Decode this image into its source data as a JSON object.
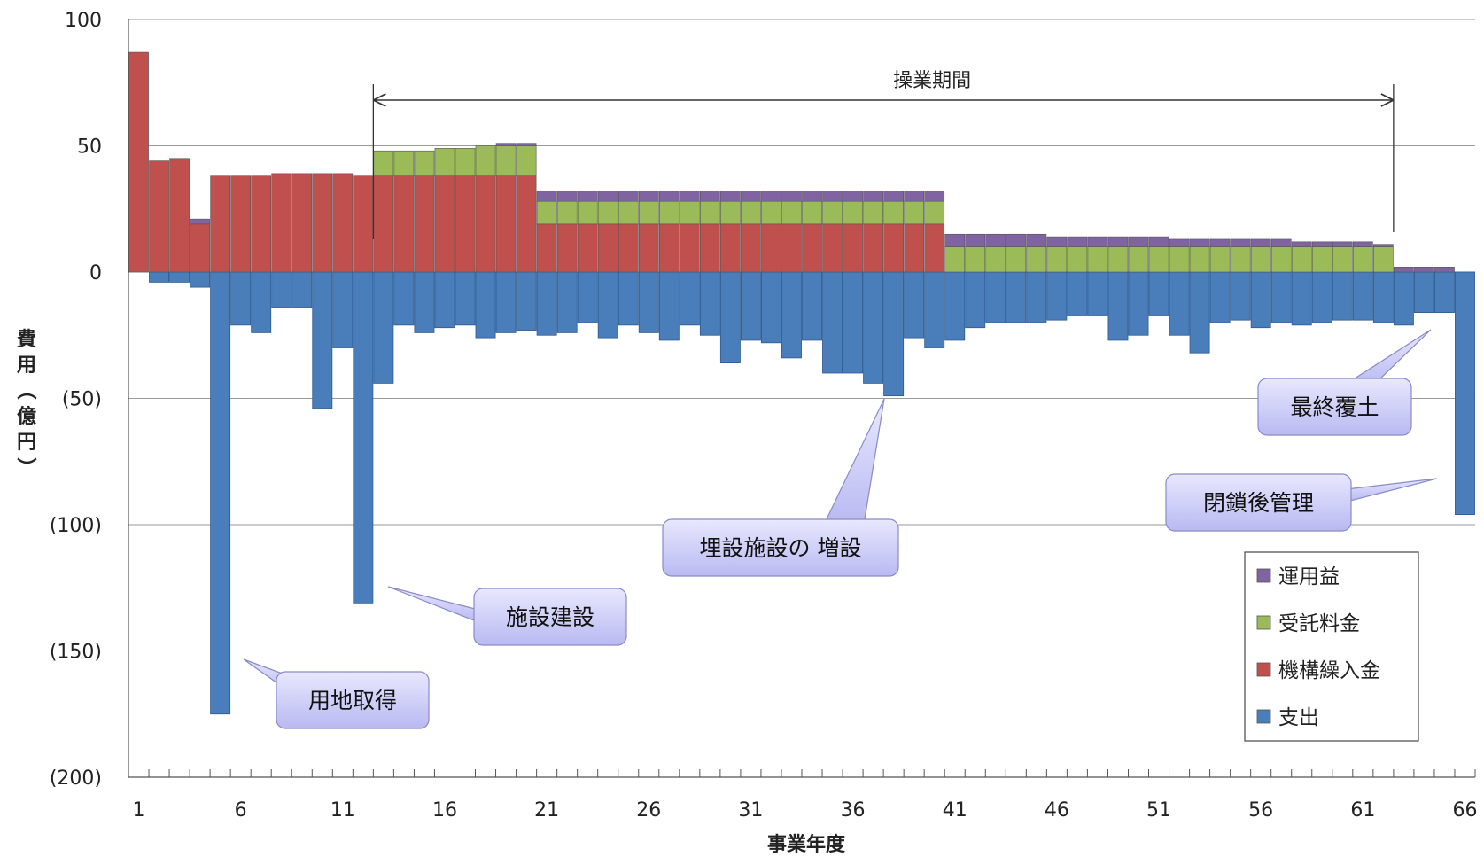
{
  "chart_data": {
    "type": "bar",
    "stacked": true,
    "xlabel": "事業年度",
    "ylabel": "費用（億円）",
    "ylim": [
      -200,
      100
    ],
    "yticks": [
      100,
      50,
      0,
      -50,
      -100,
      -150,
      -200
    ],
    "ytick_labels": [
      "100",
      "50",
      "0",
      "(50)",
      "(100)",
      "(150)",
      "(200)"
    ],
    "xtick_labels": [
      "1",
      "6",
      "11",
      "16",
      "21",
      "26",
      "31",
      "36",
      "41",
      "46",
      "51",
      "56",
      "61",
      "66"
    ],
    "xtick_values": [
      1,
      6,
      11,
      16,
      21,
      26,
      31,
      36,
      41,
      46,
      51,
      56,
      61,
      66
    ],
    "grid": true,
    "legend_position": "bottom-right",
    "x": [
      1,
      2,
      3,
      4,
      5,
      6,
      7,
      8,
      9,
      10,
      11,
      12,
      13,
      14,
      15,
      16,
      17,
      18,
      19,
      20,
      21,
      22,
      23,
      24,
      25,
      26,
      27,
      28,
      29,
      30,
      31,
      32,
      33,
      34,
      35,
      36,
      37,
      38,
      39,
      40,
      41,
      42,
      43,
      44,
      45,
      46,
      47,
      48,
      49,
      50,
      51,
      52,
      53,
      54,
      55,
      56,
      57,
      58,
      59,
      60,
      61,
      62,
      63,
      64,
      65,
      66
    ],
    "series": [
      {
        "name": "支出",
        "color": "#4a7ebb",
        "values": [
          0,
          -4,
          -4,
          -6,
          -175,
          -21,
          -24,
          -14,
          -14,
          -54,
          -30,
          -131,
          -44,
          -21,
          -24,
          -22,
          -21,
          -26,
          -24,
          -23,
          -25,
          -24,
          -20,
          -26,
          -21,
          -24,
          -27,
          -21,
          -25,
          -36,
          -27,
          -28,
          -34,
          -27,
          -40,
          -40,
          -44,
          -49,
          -26,
          -30,
          -27,
          -22,
          -20,
          -20,
          -20,
          -19,
          -17,
          -17,
          -27,
          -25,
          -17,
          -25,
          -32,
          -20,
          -19,
          -22,
          -20,
          -21,
          -20,
          -19,
          -19,
          -20,
          -21,
          -16,
          -16,
          -96
        ]
      },
      {
        "name": "機構繰入金",
        "color": "#c0504d",
        "values": [
          87,
          44,
          45,
          19,
          38,
          38,
          38,
          39,
          39,
          39,
          39,
          38,
          38,
          38,
          38,
          38,
          38,
          38,
          38,
          38,
          19,
          19,
          19,
          19,
          19,
          19,
          19,
          19,
          19,
          19,
          19,
          19,
          19,
          19,
          19,
          19,
          19,
          19,
          19,
          19,
          0,
          0,
          0,
          0,
          0,
          0,
          0,
          0,
          0,
          0,
          0,
          0,
          0,
          0,
          0,
          0,
          0,
          0,
          0,
          0,
          0,
          0,
          0,
          0,
          0,
          0
        ]
      },
      {
        "name": "受託料金",
        "color": "#9bbb59",
        "values": [
          0,
          0,
          0,
          0,
          0,
          0,
          0,
          0,
          0,
          0,
          0,
          0,
          10,
          10,
          10,
          11,
          11,
          12,
          12,
          12,
          9,
          9,
          9,
          9,
          9,
          9,
          9,
          9,
          9,
          9,
          9,
          9,
          9,
          9,
          9,
          9,
          9,
          9,
          9,
          9,
          10,
          10,
          10,
          10,
          10,
          10,
          10,
          10,
          10,
          10,
          10,
          10,
          10,
          10,
          10,
          10,
          10,
          10,
          10,
          10,
          10,
          10,
          0,
          0,
          0,
          0
        ]
      },
      {
        "name": "運用益",
        "color": "#8064a2",
        "values": [
          0,
          0,
          0,
          2,
          0,
          0,
          0,
          0,
          0,
          0,
          0,
          0,
          0,
          0,
          0,
          0,
          0,
          0,
          1,
          1,
          4,
          4,
          4,
          4,
          4,
          4,
          4,
          4,
          4,
          4,
          4,
          4,
          4,
          4,
          4,
          4,
          4,
          4,
          4,
          4,
          5,
          5,
          5,
          5,
          5,
          4,
          4,
          4,
          4,
          4,
          4,
          3,
          3,
          3,
          3,
          3,
          3,
          2,
          2,
          2,
          2,
          1,
          2,
          2,
          2,
          0
        ]
      }
    ],
    "legend_order": [
      "運用益",
      "受託料金",
      "機構繰入金",
      "支出"
    ],
    "annotations": {
      "operation_period": {
        "label": "操業期間",
        "x_start": 12.5,
        "x_end": 62.5,
        "y": 68
      },
      "callouts": [
        {
          "label": "用地取得",
          "target": [
            5,
            -175
          ]
        },
        {
          "label": "施設建設",
          "target": [
            12,
            -127
          ]
        },
        {
          "label": "埋設施設の 増設",
          "target": [
            38,
            -49
          ]
        },
        {
          "label": "最終覆土",
          "target": [
            64,
            -21
          ]
        },
        {
          "label": "閉鎖後管理",
          "target": [
            66,
            -82
          ]
        }
      ]
    }
  }
}
